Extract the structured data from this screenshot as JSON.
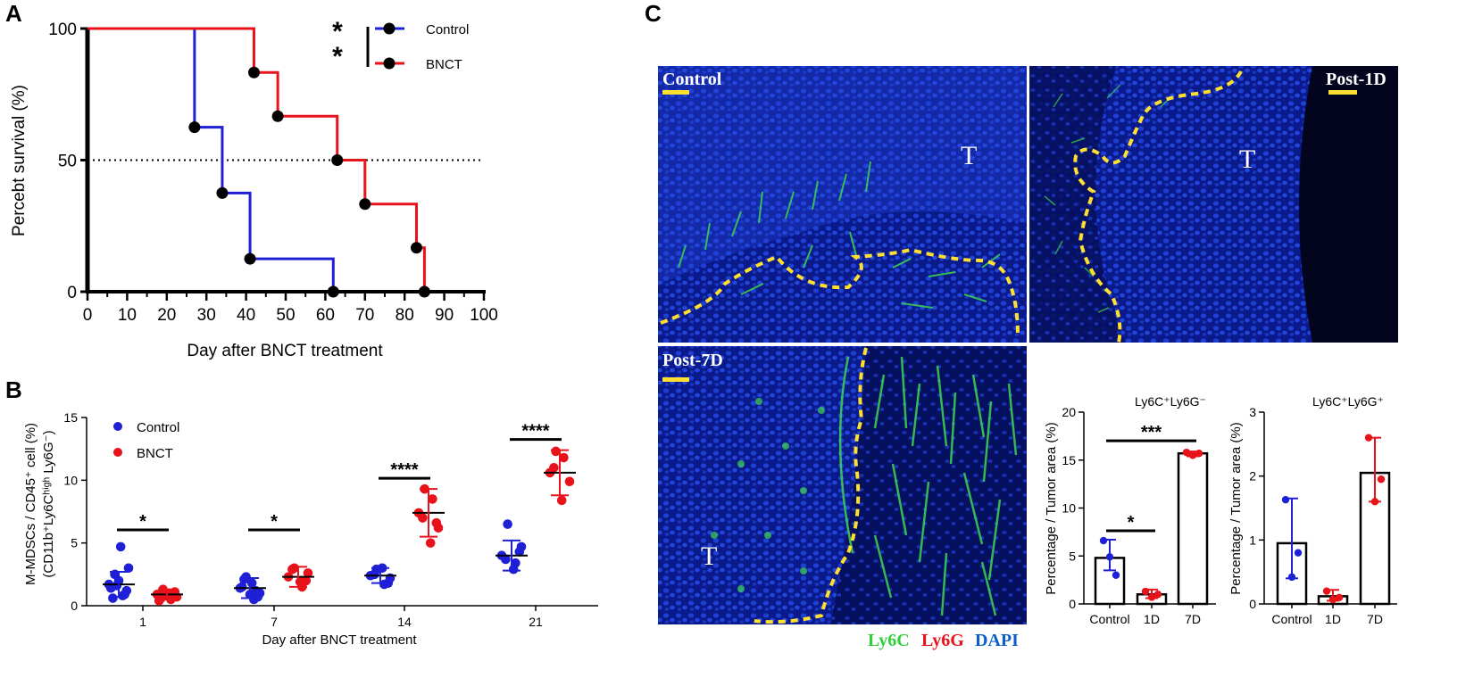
{
  "panels": {
    "A": "A",
    "B": "B",
    "C": "C"
  },
  "colors": {
    "control": "#1f1fd6",
    "bnct": "#e8121a",
    "dapi": "#0a1f9a",
    "ly6c": "#2fcf3c",
    "ly6g": "#e8121a",
    "outline": "#ffe030"
  },
  "chart_data": [
    {
      "id": "A",
      "type": "line",
      "step": true,
      "ylabel": "Percebt survival (%)",
      "xlabel": "Day after BNCT treatment",
      "xlim": [
        0,
        100
      ],
      "ylim": [
        0,
        100
      ],
      "xticks": [
        "0",
        "10",
        "20",
        "30",
        "40",
        "50",
        "60",
        "70",
        "80",
        "90",
        "100"
      ],
      "yticks": [
        "0",
        "50",
        "100"
      ],
      "reference_line": 50,
      "significance": "**",
      "legend_position": "top-right",
      "series": [
        {
          "name": "Control",
          "color": "#1f1fd6",
          "steps": [
            [
              0,
              100
            ],
            [
              27,
              62.5
            ],
            [
              34,
              37.5
            ],
            [
              41,
              12.5
            ],
            [
              62,
              0
            ]
          ],
          "markers": [
            [
              27,
              62.5
            ],
            [
              34,
              37.5
            ],
            [
              41,
              12.5
            ],
            [
              62,
              0
            ]
          ]
        },
        {
          "name": "BNCT",
          "color": "#e8121a",
          "steps": [
            [
              0,
              100
            ],
            [
              42,
              83.3
            ],
            [
              48,
              66.7
            ],
            [
              63,
              50
            ],
            [
              70,
              33.3
            ],
            [
              83,
              16.7
            ],
            [
              85,
              0
            ]
          ],
          "markers": [
            [
              42,
              83.3
            ],
            [
              48,
              66.7
            ],
            [
              63,
              50
            ],
            [
              70,
              33.3
            ],
            [
              83,
              16.7
            ],
            [
              85,
              0
            ]
          ]
        }
      ]
    },
    {
      "id": "B",
      "type": "scatter",
      "ylabel_line1": "M-MDSCs / CD45⁺ cell (%)",
      "ylabel_line2": "(CD11b⁺Ly6Cʰⁱᵍʰ Ly6G⁻)",
      "xlabel": "Day after BNCT treatment",
      "categories": [
        "1",
        "7",
        "14",
        "21"
      ],
      "ylim": [
        0,
        15
      ],
      "yticks": [
        "0",
        "5",
        "10",
        "15"
      ],
      "legend_position": "top-left",
      "series": [
        {
          "name": "Control",
          "color": "#1f1fd6",
          "mean": [
            1.7,
            1.4,
            2.4,
            4.0
          ],
          "sd": [
            1.0,
            0.8,
            0.6,
            1.2
          ],
          "points": [
            [
              1.7,
              0.8,
              2.5,
              3.0,
              4.7,
              0.6,
              1.2,
              2.0,
              1.4,
              0.9,
              1.6
            ],
            [
              1.4,
              0.5,
              2.3,
              1.0,
              1.8,
              2.1,
              0.7,
              0.9,
              1.5,
              1.2
            ],
            [
              2.4,
              1.7,
              2.9,
              2.2,
              3.0,
              2.5,
              1.8
            ],
            [
              4.0,
              3.4,
              6.5,
              4.7,
              2.9,
              3.7,
              4.3
            ]
          ]
        },
        {
          "name": "BNCT",
          "color": "#e8121a",
          "mean": [
            0.9,
            2.3,
            7.4,
            10.6
          ],
          "sd": [
            0.4,
            0.8,
            1.9,
            1.8
          ],
          "points": [
            [
              0.9,
              0.5,
              1.3,
              0.7,
              1.0,
              0.6,
              1.1,
              0.8,
              0.4
            ],
            [
              2.3,
              1.5,
              3.0,
              2.6,
              1.9,
              2.9,
              2.0
            ],
            [
              7.4,
              8.5,
              9.3,
              6.2,
              5.0,
              7.0,
              6.6
            ],
            [
              10.6,
              11.8,
              12.3,
              9.9,
              8.4,
              11.0
            ]
          ]
        }
      ],
      "significance": [
        "*",
        "*",
        "****",
        "****"
      ]
    },
    {
      "id": "C-left",
      "type": "bar",
      "title": "Ly6C⁺Ly6G⁻",
      "ylabel": "Percentage / Tumor area (%)",
      "categories": [
        "Control",
        "1D",
        "7D"
      ],
      "values": [
        4.8,
        1.0,
        15.7
      ],
      "errors": [
        [
          3.5,
          6.7
        ],
        [
          0.6,
          1.5
        ],
        [
          15.4,
          15.9
        ]
      ],
      "colors": [
        "#1f1fd6",
        "#e8121a",
        "#e8121a"
      ],
      "points": [
        [
          6.6,
          4.9,
          3.0
        ],
        [
          1.3,
          0.7,
          1.0
        ],
        [
          15.8,
          15.5,
          15.7
        ]
      ],
      "ylim": [
        0,
        20
      ],
      "yticks": [
        "0",
        "5",
        "10",
        "15",
        "20"
      ],
      "significance": [
        {
          "label": "*",
          "pair": [
            0,
            1
          ]
        },
        {
          "label": "***",
          "pair": [
            0,
            2
          ]
        }
      ]
    },
    {
      "id": "C-right",
      "type": "bar",
      "title": "Ly6C⁺Ly6G⁺",
      "ylabel": "Percentage / Tumor area (%)",
      "categories": [
        "Control",
        "1D",
        "7D"
      ],
      "values": [
        0.95,
        0.12,
        2.05
      ],
      "errors": [
        [
          0.4,
          1.65
        ],
        [
          0.05,
          0.22
        ],
        [
          1.6,
          2.6
        ]
      ],
      "colors": [
        "#1f1fd6",
        "#e8121a",
        "#e8121a"
      ],
      "points": [
        [
          1.63,
          0.42,
          0.8
        ],
        [
          0.2,
          0.07,
          0.1
        ],
        [
          2.6,
          1.6,
          1.95
        ]
      ],
      "ylim": [
        0,
        3
      ],
      "yticks": [
        "0",
        "1",
        "2",
        "3"
      ]
    }
  ],
  "images": {
    "control": {
      "label": "Control",
      "T": "T"
    },
    "post1d": {
      "label": "Post-1D",
      "T": "T"
    },
    "post7d": {
      "label": "Post-7D",
      "T": "T"
    },
    "legend": {
      "ly6c": "Ly6C",
      "ly6g": "Ly6G",
      "dapi": "DAPI"
    }
  }
}
